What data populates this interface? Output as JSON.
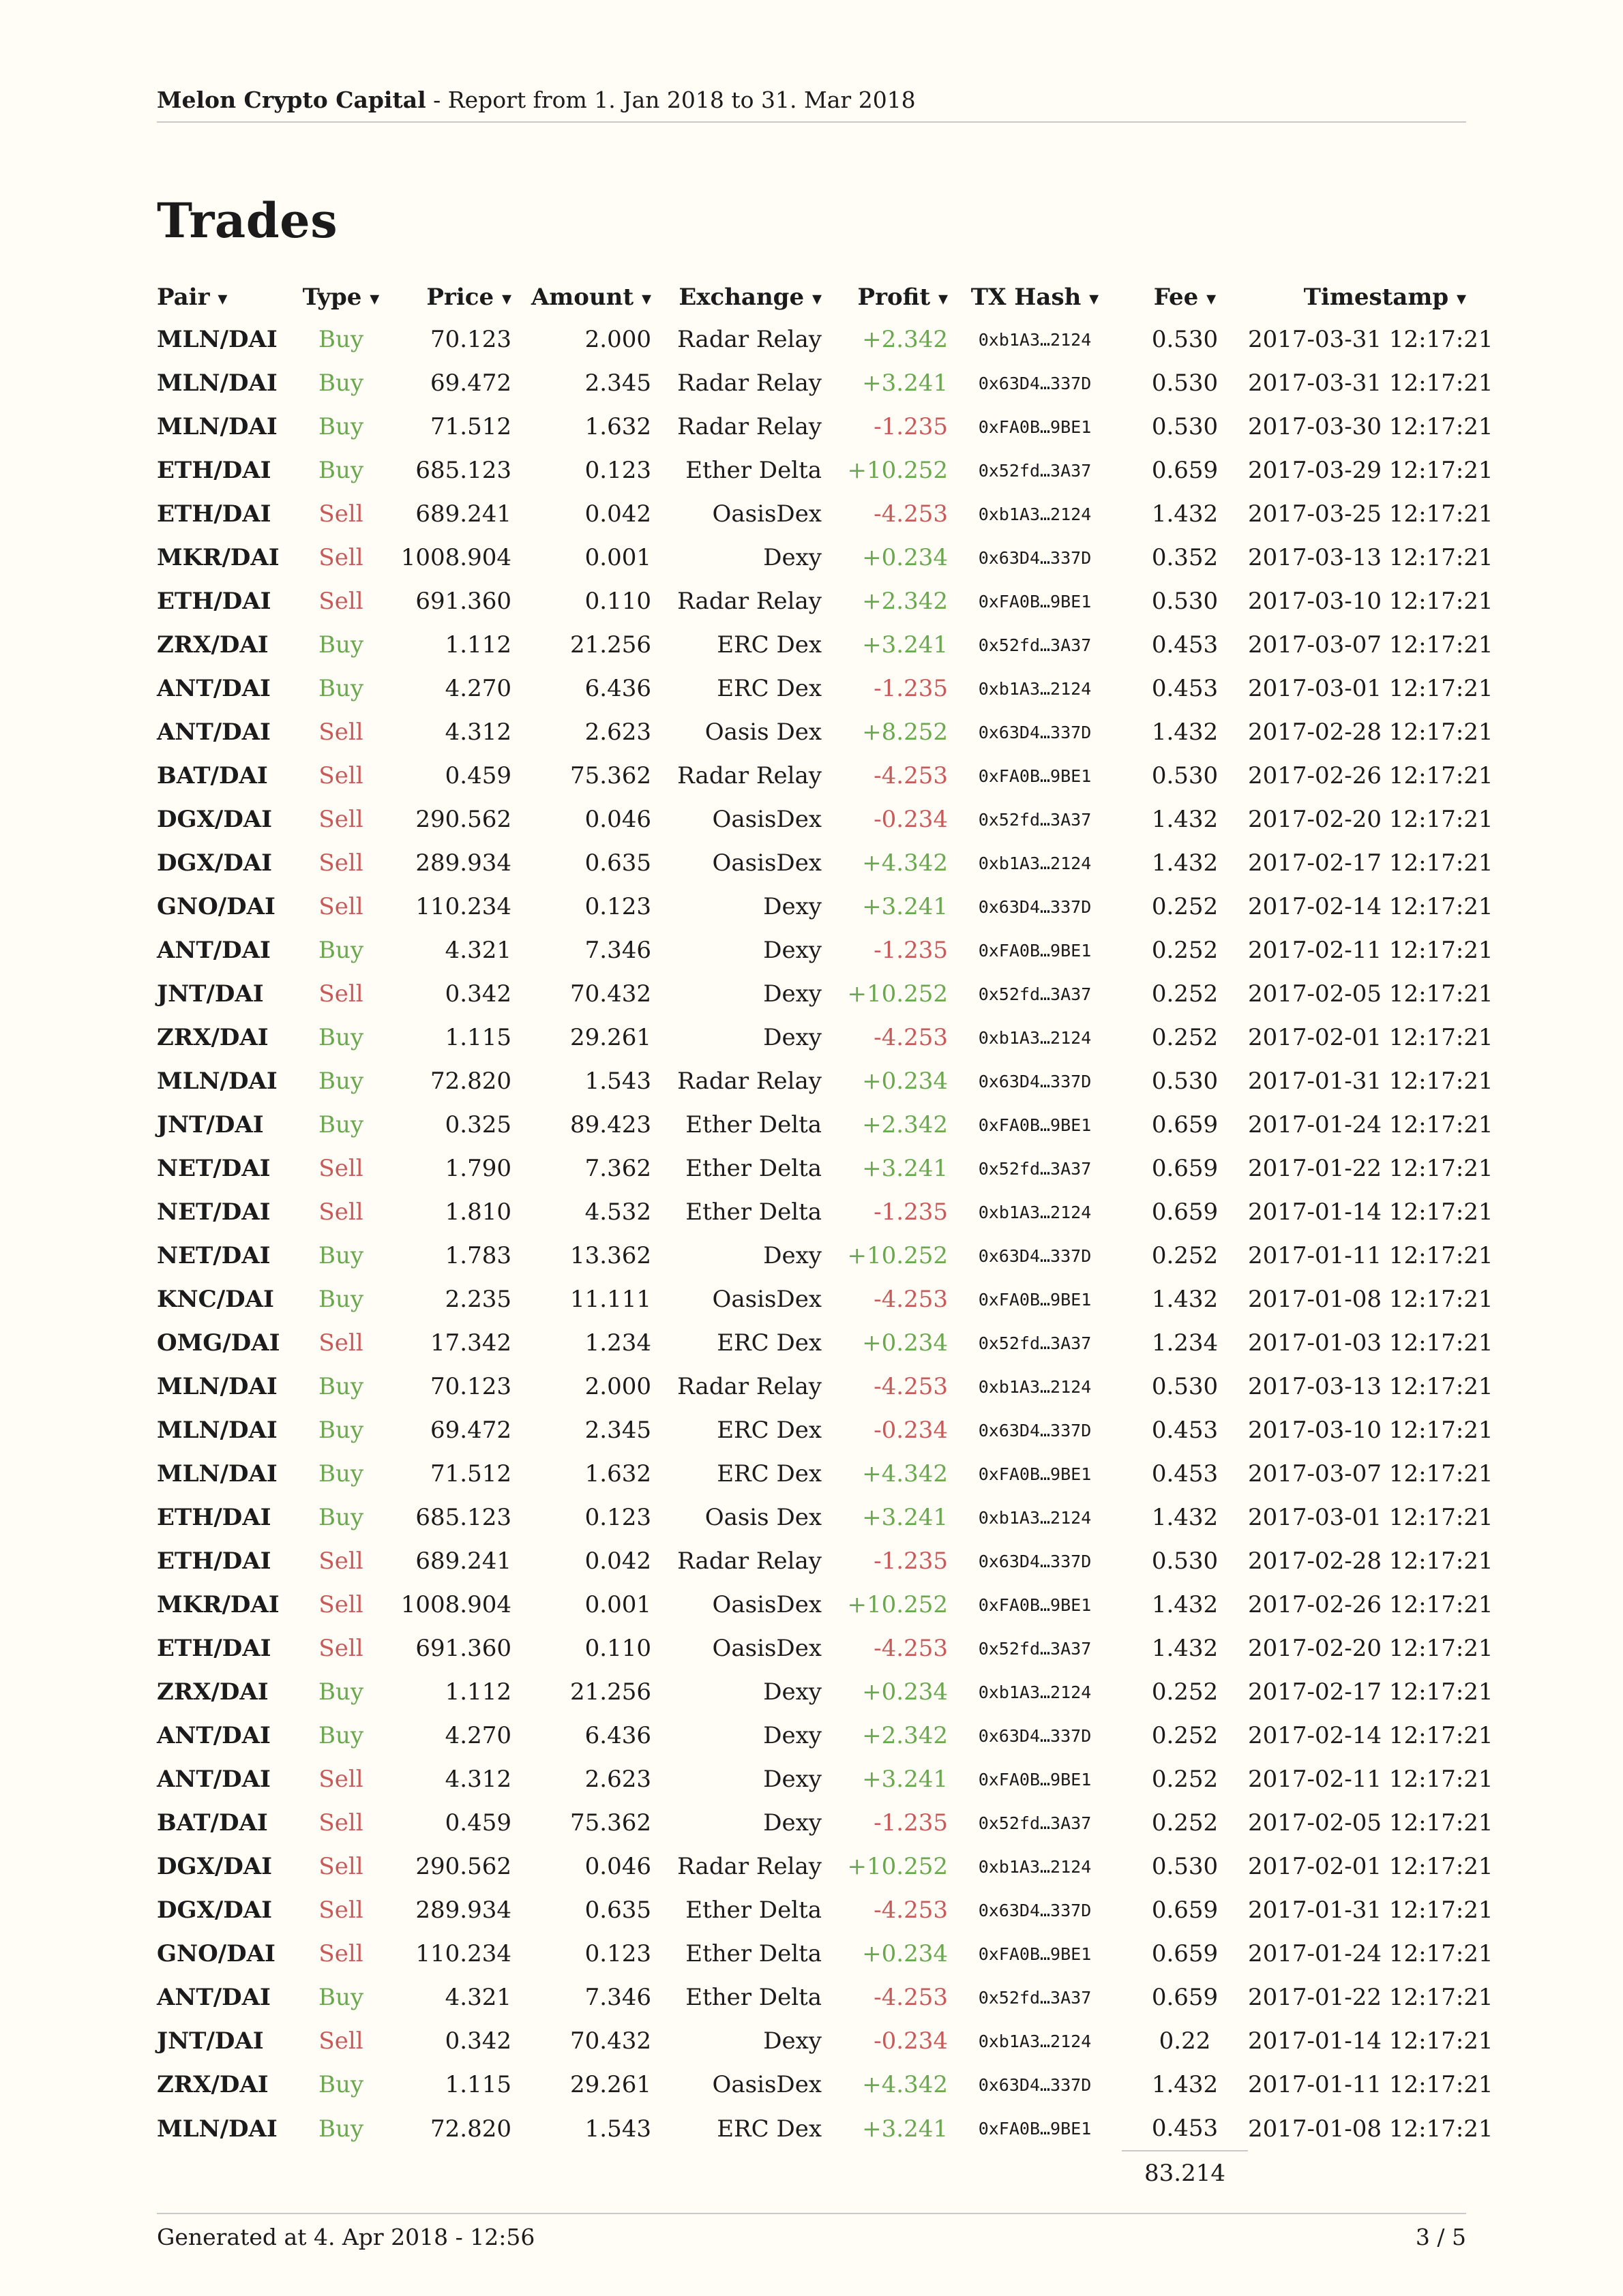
{
  "header": {
    "brand": "Melon Crypto Capital",
    "subtitle": " - Report from 1. Jan 2018 to 31. Mar 2018"
  },
  "title": "Trades",
  "columns": [
    "Pair",
    "Type",
    "Price",
    "Amount",
    "Exchange",
    "Profit",
    "TX Hash",
    "Fee",
    "Timestamp"
  ],
  "sort_arrow": "▾",
  "rows": [
    [
      "MLN/DAI",
      "Buy",
      "70.123",
      "2.000",
      "Radar Relay",
      "+2.342",
      "0xb1A3…2124",
      "0.530",
      "2017-03-31 12:17:21"
    ],
    [
      "MLN/DAI",
      "Buy",
      "69.472",
      "2.345",
      "Radar Relay",
      "+3.241",
      "0x63D4…337D",
      "0.530",
      "2017-03-31 12:17:21"
    ],
    [
      "MLN/DAI",
      "Buy",
      "71.512",
      "1.632",
      "Radar Relay",
      "-1.235",
      "0xFA0B…9BE1",
      "0.530",
      "2017-03-30 12:17:21"
    ],
    [
      "ETH/DAI",
      "Buy",
      "685.123",
      "0.123",
      "Ether Delta",
      "+10.252",
      "0x52fd…3A37",
      "0.659",
      "2017-03-29 12:17:21"
    ],
    [
      "ETH/DAI",
      "Sell",
      "689.241",
      "0.042",
      "OasisDex",
      "-4.253",
      "0xb1A3…2124",
      "1.432",
      "2017-03-25 12:17:21"
    ],
    [
      "MKR/DAI",
      "Sell",
      "1008.904",
      "0.001",
      "Dexy",
      "+0.234",
      "0x63D4…337D",
      "0.352",
      "2017-03-13 12:17:21"
    ],
    [
      "ETH/DAI",
      "Sell",
      "691.360",
      "0.110",
      "Radar Relay",
      "+2.342",
      "0xFA0B…9BE1",
      "0.530",
      "2017-03-10 12:17:21"
    ],
    [
      "ZRX/DAI",
      "Buy",
      "1.112",
      "21.256",
      "ERC Dex",
      "+3.241",
      "0x52fd…3A37",
      "0.453",
      "2017-03-07 12:17:21"
    ],
    [
      "ANT/DAI",
      "Buy",
      "4.270",
      "6.436",
      "ERC Dex",
      "-1.235",
      "0xb1A3…2124",
      "0.453",
      "2017-03-01 12:17:21"
    ],
    [
      "ANT/DAI",
      "Sell",
      "4.312",
      "2.623",
      "Oasis Dex",
      "+8.252",
      "0x63D4…337D",
      "1.432",
      "2017-02-28 12:17:21"
    ],
    [
      "BAT/DAI",
      "Sell",
      "0.459",
      "75.362",
      "Radar Relay",
      "-4.253",
      "0xFA0B…9BE1",
      "0.530",
      "2017-02-26 12:17:21"
    ],
    [
      "DGX/DAI",
      "Sell",
      "290.562",
      "0.046",
      "OasisDex",
      "-0.234",
      "0x52fd…3A37",
      "1.432",
      "2017-02-20 12:17:21"
    ],
    [
      "DGX/DAI",
      "Sell",
      "289.934",
      "0.635",
      "OasisDex",
      "+4.342",
      "0xb1A3…2124",
      "1.432",
      "2017-02-17 12:17:21"
    ],
    [
      "GNO/DAI",
      "Sell",
      "110.234",
      "0.123",
      "Dexy",
      "+3.241",
      "0x63D4…337D",
      "0.252",
      "2017-02-14 12:17:21"
    ],
    [
      "ANT/DAI",
      "Buy",
      "4.321",
      "7.346",
      "Dexy",
      "-1.235",
      "0xFA0B…9BE1",
      "0.252",
      "2017-02-11 12:17:21"
    ],
    [
      "JNT/DAI",
      "Sell",
      "0.342",
      "70.432",
      "Dexy",
      "+10.252",
      "0x52fd…3A37",
      "0.252",
      "2017-02-05 12:17:21"
    ],
    [
      "ZRX/DAI",
      "Buy",
      "1.115",
      "29.261",
      "Dexy",
      "-4.253",
      "0xb1A3…2124",
      "0.252",
      "2017-02-01 12:17:21"
    ],
    [
      "MLN/DAI",
      "Buy",
      "72.820",
      "1.543",
      "Radar Relay",
      "+0.234",
      "0x63D4…337D",
      "0.530",
      "2017-01-31 12:17:21"
    ],
    [
      "JNT/DAI",
      "Buy",
      "0.325",
      "89.423",
      "Ether Delta",
      "+2.342",
      "0xFA0B…9BE1",
      "0.659",
      "2017-01-24 12:17:21"
    ],
    [
      "NET/DAI",
      "Sell",
      "1.790",
      "7.362",
      "Ether Delta",
      "+3.241",
      "0x52fd…3A37",
      "0.659",
      "2017-01-22 12:17:21"
    ],
    [
      "NET/DAI",
      "Sell",
      "1.810",
      "4.532",
      "Ether Delta",
      "-1.235",
      "0xb1A3…2124",
      "0.659",
      "2017-01-14 12:17:21"
    ],
    [
      "NET/DAI",
      "Buy",
      "1.783",
      "13.362",
      "Dexy",
      "+10.252",
      "0x63D4…337D",
      "0.252",
      "2017-01-11 12:17:21"
    ],
    [
      "KNC/DAI",
      "Buy",
      "2.235",
      "11.111",
      "OasisDex",
      "-4.253",
      "0xFA0B…9BE1",
      "1.432",
      "2017-01-08 12:17:21"
    ],
    [
      "OMG/DAI",
      "Sell",
      "17.342",
      "1.234",
      "ERC Dex",
      "+0.234",
      "0x52fd…3A37",
      "1.234",
      "2017-01-03 12:17:21"
    ],
    [
      "MLN/DAI",
      "Buy",
      "70.123",
      "2.000",
      "Radar Relay",
      "-4.253",
      "0xb1A3…2124",
      "0.530",
      "2017-03-13 12:17:21"
    ],
    [
      "MLN/DAI",
      "Buy",
      "69.472",
      "2.345",
      "ERC Dex",
      "-0.234",
      "0x63D4…337D",
      "0.453",
      "2017-03-10 12:17:21"
    ],
    [
      "MLN/DAI",
      "Buy",
      "71.512",
      "1.632",
      "ERC Dex",
      "+4.342",
      "0xFA0B…9BE1",
      "0.453",
      "2017-03-07 12:17:21"
    ],
    [
      "ETH/DAI",
      "Buy",
      "685.123",
      "0.123",
      "Oasis Dex",
      "+3.241",
      "0xb1A3…2124",
      "1.432",
      "2017-03-01 12:17:21"
    ],
    [
      "ETH/DAI",
      "Sell",
      "689.241",
      "0.042",
      "Radar Relay",
      "-1.235",
      "0x63D4…337D",
      "0.530",
      "2017-02-28 12:17:21"
    ],
    [
      "MKR/DAI",
      "Sell",
      "1008.904",
      "0.001",
      "OasisDex",
      "+10.252",
      "0xFA0B…9BE1",
      "1.432",
      "2017-02-26 12:17:21"
    ],
    [
      "ETH/DAI",
      "Sell",
      "691.360",
      "0.110",
      "OasisDex",
      "-4.253",
      "0x52fd…3A37",
      "1.432",
      "2017-02-20 12:17:21"
    ],
    [
      "ZRX/DAI",
      "Buy",
      "1.112",
      "21.256",
      "Dexy",
      "+0.234",
      "0xb1A3…2124",
      "0.252",
      "2017-02-17 12:17:21"
    ],
    [
      "ANT/DAI",
      "Buy",
      "4.270",
      "6.436",
      "Dexy",
      "+2.342",
      "0x63D4…337D",
      "0.252",
      "2017-02-14 12:17:21"
    ],
    [
      "ANT/DAI",
      "Sell",
      "4.312",
      "2.623",
      "Dexy",
      "+3.241",
      "0xFA0B…9BE1",
      "0.252",
      "2017-02-11 12:17:21"
    ],
    [
      "BAT/DAI",
      "Sell",
      "0.459",
      "75.362",
      "Dexy",
      "-1.235",
      "0x52fd…3A37",
      "0.252",
      "2017-02-05 12:17:21"
    ],
    [
      "DGX/DAI",
      "Sell",
      "290.562",
      "0.046",
      "Radar Relay",
      "+10.252",
      "0xb1A3…2124",
      "0.530",
      "2017-02-01 12:17:21"
    ],
    [
      "DGX/DAI",
      "Sell",
      "289.934",
      "0.635",
      "Ether Delta",
      "-4.253",
      "0x63D4…337D",
      "0.659",
      "2017-01-31 12:17:21"
    ],
    [
      "GNO/DAI",
      "Sell",
      "110.234",
      "0.123",
      "Ether Delta",
      "+0.234",
      "0xFA0B…9BE1",
      "0.659",
      "2017-01-24 12:17:21"
    ],
    [
      "ANT/DAI",
      "Buy",
      "4.321",
      "7.346",
      "Ether Delta",
      "-4.253",
      "0x52fd…3A37",
      "0.659",
      "2017-01-22 12:17:21"
    ],
    [
      "JNT/DAI",
      "Sell",
      "0.342",
      "70.432",
      "Dexy",
      "-0.234",
      "0xb1A3…2124",
      "0.22",
      "2017-01-14 12:17:21"
    ],
    [
      "ZRX/DAI",
      "Buy",
      "1.115",
      "29.261",
      "OasisDex",
      "+4.342",
      "0x63D4…337D",
      "1.432",
      "2017-01-11 12:17:21"
    ],
    [
      "MLN/DAI",
      "Buy",
      "72.820",
      "1.543",
      "ERC Dex",
      "+3.241",
      "0xFA0B…9BE1",
      "0.453",
      "2017-01-08 12:17:21"
    ]
  ],
  "fee_total": "83.214",
  "footer": {
    "generated": "Generated at 4. Apr 2018 - 12:56",
    "page": "3 / 5"
  },
  "colors": {
    "background": "#fffdf6",
    "buy": "#6aa84f",
    "sell": "#c85a5a",
    "rule": "#c9c9c9"
  }
}
